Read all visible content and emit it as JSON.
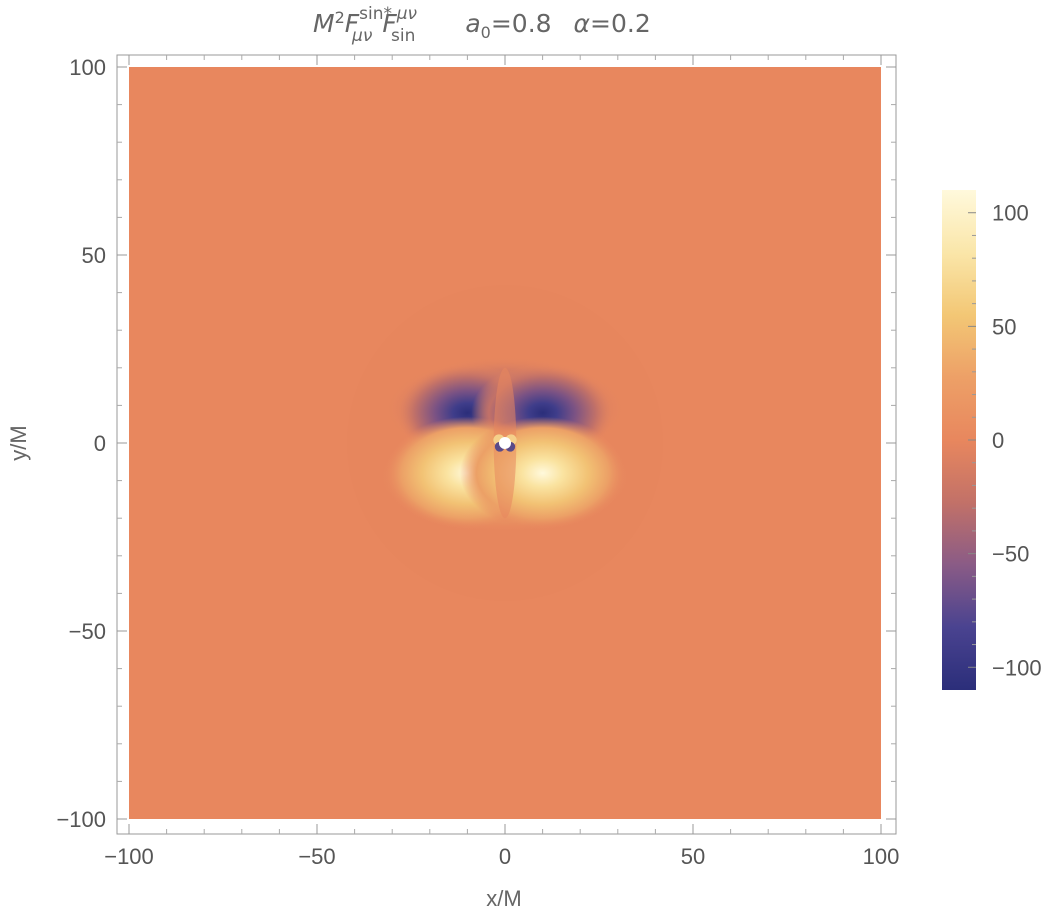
{
  "chart_data": {
    "type": "heatmap",
    "title_main": "M",
    "title_sup_2": "2",
    "title_F": "F",
    "title_sub_1": "μν",
    "title_sup_1": "sin*",
    "title_sub_2": "sin",
    "title_sup_3": "μν",
    "param_a_symbol": "a",
    "param_a_sub": "0",
    "param_a_value": "=0.8",
    "param_alpha_symbol": "α",
    "param_alpha_value": "=0.2",
    "xlabel": "x/M",
    "ylabel": "y/M",
    "xlim": [
      -100,
      100
    ],
    "ylim": [
      -100,
      100
    ],
    "x_ticks": [
      "-100",
      "-50",
      "0",
      "50",
      "100"
    ],
    "x_tick_values": [
      -100,
      -50,
      0,
      50,
      100
    ],
    "y_ticks": [
      "100",
      "50",
      "0",
      "-50",
      "-100"
    ],
    "y_tick_values": [
      100,
      50,
      0,
      -50,
      -100
    ],
    "colorbar": {
      "range": [
        -110,
        110
      ],
      "tick_values": [
        100,
        50,
        0,
        -50,
        -100
      ],
      "tick_labels": [
        "100",
        "50",
        "0",
        "-50",
        "-100"
      ]
    },
    "features": {
      "negative_lobes": [
        {
          "x": -10,
          "y": 8,
          "value": -110
        },
        {
          "x": 10,
          "y": 8,
          "value": -110
        }
      ],
      "positive_lobes": [
        {
          "x": -10,
          "y": -8,
          "value": 110
        },
        {
          "x": 10,
          "y": -8,
          "value": 110
        }
      ],
      "center_marker": {
        "x": 0,
        "y": 0
      }
    },
    "colors": {
      "background_field": "#E8875E",
      "colormap": [
        "#2B2E7A",
        "#4A4390",
        "#8A5B86",
        "#C27168",
        "#E8875E",
        "#EDA067",
        "#F3C775",
        "#FAE6A9",
        "#FFF9DC"
      ],
      "frame": "#999999",
      "text": "#555555"
    }
  }
}
